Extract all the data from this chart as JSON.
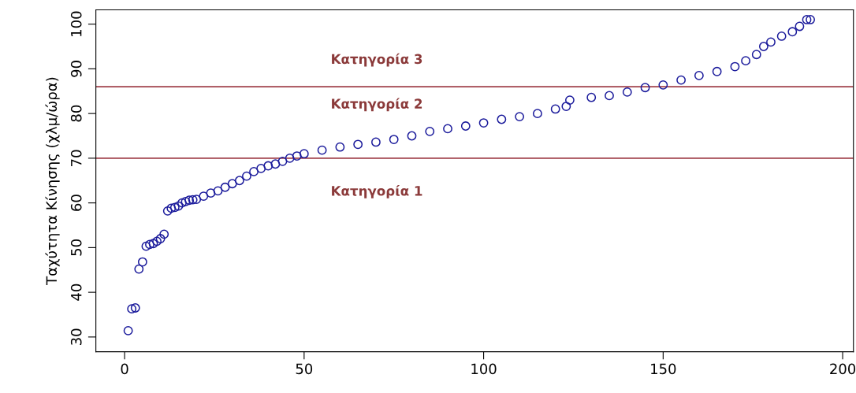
{
  "chart_data": {
    "type": "scatter",
    "ylabel": "Ταχύτητα Κίνησης (χλμ/ώρα)",
    "series": [
      {
        "color": "#1c1c9c",
        "x": [
          1,
          2,
          3,
          4,
          5,
          6,
          7,
          8,
          9,
          10,
          11,
          12,
          13,
          14,
          15,
          16,
          17,
          18,
          19,
          20,
          22,
          24,
          26,
          28,
          30,
          32,
          34,
          36,
          38,
          40,
          42,
          44,
          46,
          48,
          50,
          55,
          60,
          65,
          70,
          75,
          80,
          85,
          90,
          95,
          100,
          105,
          110,
          115,
          120,
          123,
          124,
          130,
          135,
          140,
          145,
          150,
          155,
          160,
          165,
          170,
          173,
          176,
          178,
          180,
          183,
          186,
          188,
          190,
          191
        ],
        "values": [
          31.4,
          36.3,
          36.5,
          45.2,
          46.8,
          50.3,
          50.7,
          50.9,
          51.4,
          52.0,
          53.0,
          58.2,
          58.8,
          59.0,
          59.3,
          60.0,
          60.3,
          60.6,
          60.7,
          60.8,
          61.5,
          62.2,
          62.7,
          63.5,
          64.3,
          65.0,
          66.0,
          67.0,
          67.7,
          68.3,
          68.7,
          69.3,
          70.0,
          70.5,
          71.0,
          71.8,
          72.5,
          73.1,
          73.6,
          74.2,
          75.0,
          76.0,
          76.6,
          77.2,
          77.9,
          78.7,
          79.3,
          80.0,
          81.0,
          81.6,
          83.0,
          83.6,
          84.0,
          84.8,
          85.8,
          86.4,
          87.5,
          88.5,
          89.4,
          90.5,
          91.8,
          93.2,
          95.0,
          96.0,
          97.3,
          98.3,
          99.5,
          101.0,
          101.0
        ]
      }
    ],
    "marker": "circle",
    "xlim": [
      -8,
      203
    ],
    "xticks": [
      0,
      50,
      100,
      150,
      200
    ],
    "ylim": [
      26.7,
      103.2
    ],
    "yticks": [
      30,
      40,
      50,
      60,
      70,
      80,
      90,
      100
    ],
    "grid": false,
    "ref_lines": [
      {
        "axis": "y",
        "value": 70,
        "color": "#a0404a"
      },
      {
        "axis": "y",
        "value": 86,
        "color": "#a0404a"
      }
    ],
    "annotations": [
      "Κατηγορία 3",
      "Κατηγορία 2",
      "Κατηγορία 1"
    ]
  }
}
